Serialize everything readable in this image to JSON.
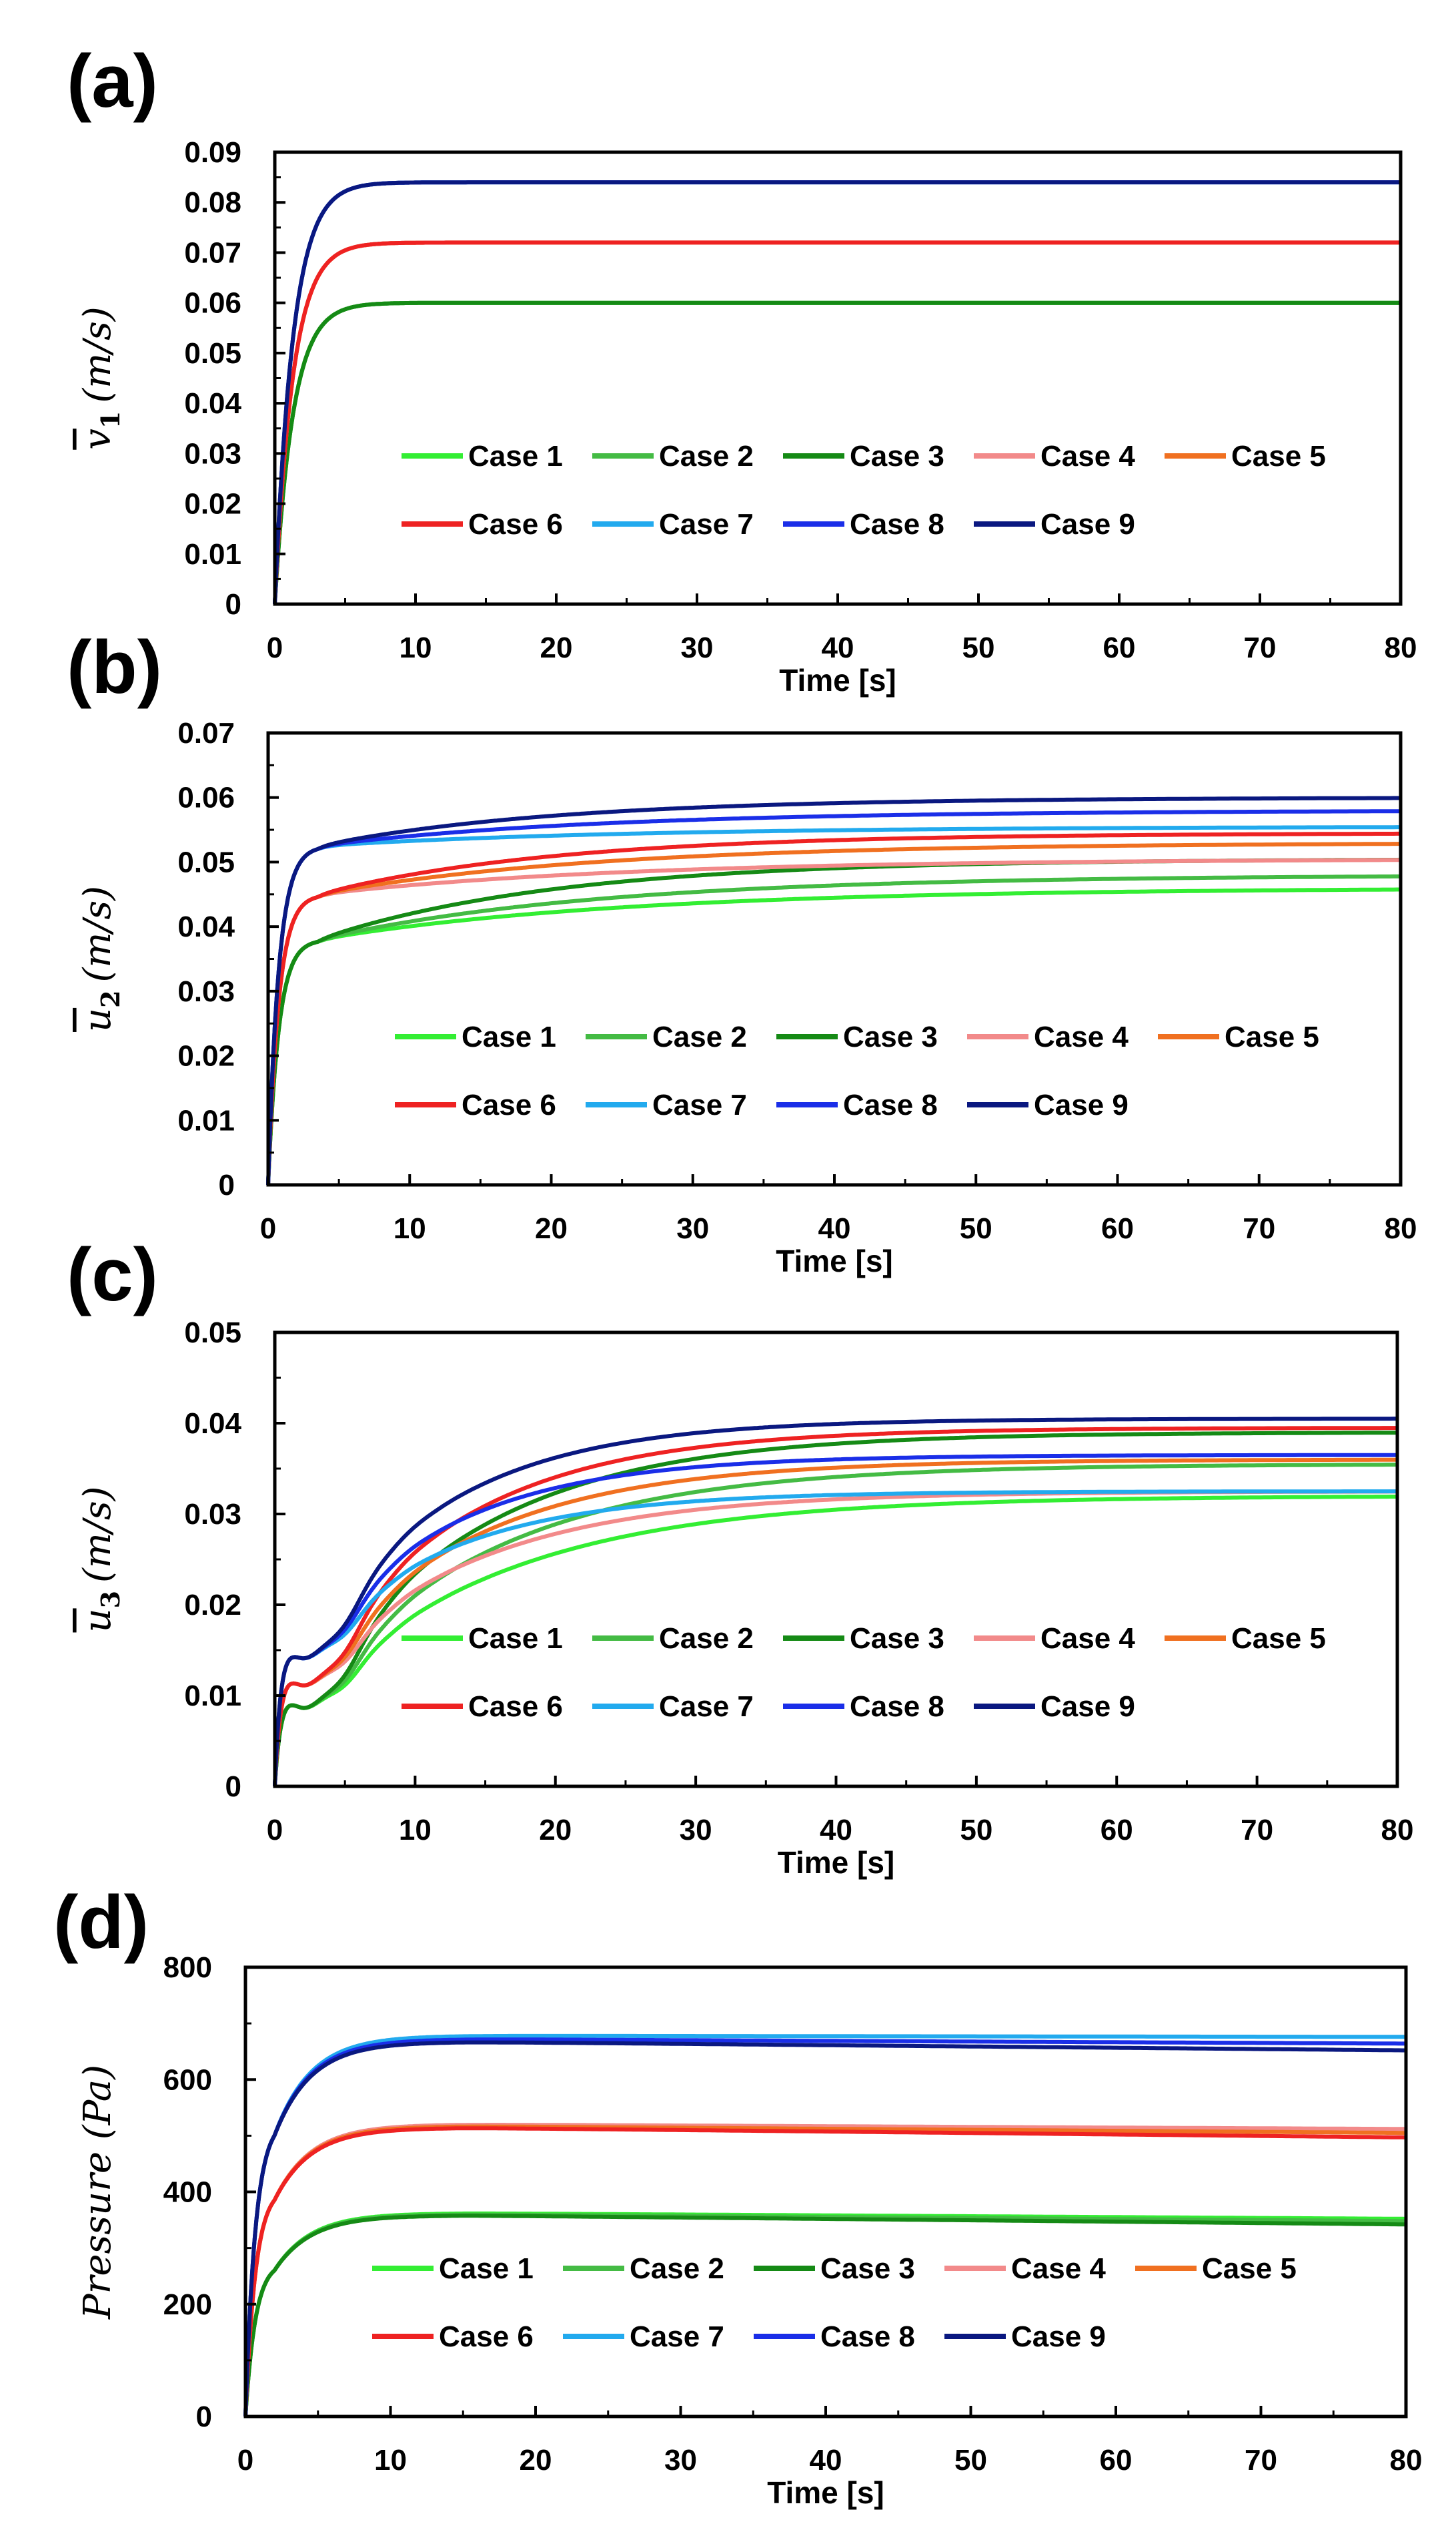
{
  "chart_data": [
    {
      "type": "line",
      "panel_label": "(a)",
      "xlabel": "Time [s]",
      "ylabel_main": "v",
      "ylabel_sub": "1",
      "ylabel_units": "(m/s)",
      "xlim": [
        0,
        80
      ],
      "ylim": [
        0,
        0.09
      ],
      "xticks": [
        "0",
        "10",
        "20",
        "30",
        "40",
        "50",
        "60",
        "70",
        "80"
      ],
      "yticks": [
        "0",
        "0.01",
        "0.02",
        "0.03",
        "0.04",
        "0.05",
        "0.06",
        "0.07",
        "0.08",
        "0.09"
      ],
      "legend_position": "lower-right",
      "grid": false,
      "series": [
        {
          "name": "Case 1",
          "color": "#33ee33",
          "final": 0.06,
          "curve": "exp",
          "tau": 1.3,
          "start": 0.0
        },
        {
          "name": "Case 2",
          "color": "#44bb44",
          "final": 0.06,
          "curve": "exp",
          "tau": 1.3,
          "start": 0.0
        },
        {
          "name": "Case 3",
          "color": "#158a15",
          "final": 0.06,
          "curve": "exp",
          "tau": 1.3,
          "start": 0.0
        },
        {
          "name": "Case 4",
          "color": "#f28a8a",
          "final": 0.072,
          "curve": "exp",
          "tau": 1.3,
          "start": 0.0
        },
        {
          "name": "Case 5",
          "color": "#f07020",
          "final": 0.072,
          "curve": "exp",
          "tau": 1.3,
          "start": 0.0
        },
        {
          "name": "Case 6",
          "color": "#ee2222",
          "final": 0.072,
          "curve": "exp",
          "tau": 1.3,
          "start": 0.0
        },
        {
          "name": "Case 7",
          "color": "#22aaee",
          "final": 0.084,
          "curve": "exp",
          "tau": 1.3,
          "start": 0.0
        },
        {
          "name": "Case 8",
          "color": "#1a2ee8",
          "final": 0.084,
          "curve": "exp",
          "tau": 1.3,
          "start": 0.0
        },
        {
          "name": "Case 9",
          "color": "#0a1880",
          "final": 0.084,
          "curve": "exp",
          "tau": 1.3,
          "start": 0.0
        }
      ]
    },
    {
      "type": "line",
      "panel_label": "(b)",
      "xlabel": "Time [s]",
      "ylabel_main": "u",
      "ylabel_sub": "2",
      "ylabel_units": "(m/s)",
      "xlim": [
        0,
        80
      ],
      "ylim": [
        0,
        0.07
      ],
      "xticks": [
        "0",
        "10",
        "20",
        "30",
        "40",
        "50",
        "60",
        "70",
        "80"
      ],
      "yticks": [
        "0",
        "0.01",
        "0.02",
        "0.03",
        "0.04",
        "0.05",
        "0.06",
        "0.07"
      ],
      "legend_position": "lower-right",
      "grid": false,
      "series": [
        {
          "name": "Case 1",
          "color": "#33ee33",
          "curve": "plateau",
          "plateau": 0.038,
          "final": 0.046,
          "tau": 22
        },
        {
          "name": "Case 2",
          "color": "#44bb44",
          "curve": "plateau",
          "plateau": 0.038,
          "final": 0.048,
          "tau": 20
        },
        {
          "name": "Case 3",
          "color": "#158a15",
          "curve": "plateau",
          "plateau": 0.038,
          "final": 0.0505,
          "tau": 17
        },
        {
          "name": "Case 4",
          "color": "#f28a8a",
          "curve": "plateau",
          "plateau": 0.045,
          "final": 0.0505,
          "tau": 22
        },
        {
          "name": "Case 5",
          "color": "#f07020",
          "curve": "plateau",
          "plateau": 0.045,
          "final": 0.053,
          "tau": 20
        },
        {
          "name": "Case 6",
          "color": "#ee2222",
          "curve": "plateau",
          "plateau": 0.045,
          "final": 0.0545,
          "tau": 17
        },
        {
          "name": "Case 7",
          "color": "#22aaee",
          "curve": "plateau",
          "plateau": 0.0525,
          "final": 0.0555,
          "tau": 22
        },
        {
          "name": "Case 8",
          "color": "#1a2ee8",
          "curve": "plateau",
          "plateau": 0.0525,
          "final": 0.058,
          "tau": 20
        },
        {
          "name": "Case 9",
          "color": "#0a1880",
          "curve": "plateau",
          "plateau": 0.0525,
          "final": 0.06,
          "tau": 17
        }
      ]
    },
    {
      "type": "line",
      "panel_label": "(c)",
      "xlabel": "Time [s]",
      "ylabel_main": "u",
      "ylabel_sub": "3",
      "ylabel_units": "(m/s)",
      "xlim": [
        0,
        80
      ],
      "ylim": [
        0,
        0.05
      ],
      "xticks": [
        "0",
        "10",
        "20",
        "30",
        "40",
        "50",
        "60",
        "70",
        "80"
      ],
      "yticks": [
        "0",
        "0.01",
        "0.02",
        "0.03",
        "0.04",
        "0.05"
      ],
      "legend_position": "lower-right",
      "grid": false,
      "series": [
        {
          "name": "Case 1",
          "color": "#33ee33",
          "curve": "bump",
          "plateau": 0.009,
          "final": 0.032,
          "tau": 14
        },
        {
          "name": "Case 2",
          "color": "#44bb44",
          "curve": "bump",
          "plateau": 0.009,
          "final": 0.0355,
          "tau": 13
        },
        {
          "name": "Case 3",
          "color": "#158a15",
          "curve": "bump",
          "plateau": 0.009,
          "final": 0.039,
          "tau": 12
        },
        {
          "name": "Case 4",
          "color": "#f28a8a",
          "curve": "bump",
          "plateau": 0.0115,
          "final": 0.0325,
          "tau": 12
        },
        {
          "name": "Case 5",
          "color": "#f07020",
          "curve": "bump",
          "plateau": 0.0115,
          "final": 0.036,
          "tau": 11.5
        },
        {
          "name": "Case 6",
          "color": "#ee2222",
          "curve": "bump",
          "plateau": 0.0115,
          "final": 0.0395,
          "tau": 11
        },
        {
          "name": "Case 7",
          "color": "#22aaee",
          "curve": "bump",
          "plateau": 0.0145,
          "final": 0.0325,
          "tau": 10
        },
        {
          "name": "Case 8",
          "color": "#1a2ee8",
          "curve": "bump",
          "plateau": 0.0145,
          "final": 0.0365,
          "tau": 10
        },
        {
          "name": "Case 9",
          "color": "#0a1880",
          "curve": "bump",
          "plateau": 0.0145,
          "final": 0.0405,
          "tau": 10
        }
      ]
    },
    {
      "type": "line",
      "panel_label": "(d)",
      "xlabel": "Time [s]",
      "ylabel_main": "Pressure (Pa)",
      "ylabel_sub": "",
      "ylabel_units": "",
      "xlim": [
        0,
        80
      ],
      "ylim": [
        0,
        800
      ],
      "xticks": [
        "0",
        "10",
        "20",
        "30",
        "40",
        "50",
        "60",
        "70",
        "80"
      ],
      "yticks": [
        "0",
        "200",
        "400",
        "600",
        "800"
      ],
      "legend_position": "lower-right",
      "grid": false,
      "series": [
        {
          "name": "Case 1",
          "color": "#33ee33",
          "curve": "pressure",
          "knee": 260,
          "peak": 362,
          "final": 352
        },
        {
          "name": "Case 2",
          "color": "#44bb44",
          "curve": "pressure",
          "knee": 260,
          "peak": 360,
          "final": 348
        },
        {
          "name": "Case 3",
          "color": "#158a15",
          "curve": "pressure",
          "knee": 260,
          "peak": 358,
          "final": 342
        },
        {
          "name": "Case 4",
          "color": "#f28a8a",
          "curve": "pressure",
          "knee": 385,
          "peak": 520,
          "final": 512
        },
        {
          "name": "Case 5",
          "color": "#f07020",
          "curve": "pressure",
          "knee": 385,
          "peak": 517,
          "final": 505
        },
        {
          "name": "Case 6",
          "color": "#ee2222",
          "curve": "pressure",
          "knee": 385,
          "peak": 514,
          "final": 497
        },
        {
          "name": "Case 7",
          "color": "#22aaee",
          "curve": "pressure",
          "knee": 500,
          "peak": 678,
          "final": 676
        },
        {
          "name": "Case 8",
          "color": "#1a2ee8",
          "curve": "pressure",
          "knee": 500,
          "peak": 672,
          "final": 664
        },
        {
          "name": "Case 9",
          "color": "#0a1880",
          "curve": "pressure",
          "knee": 500,
          "peak": 667,
          "final": 652
        }
      ]
    }
  ]
}
